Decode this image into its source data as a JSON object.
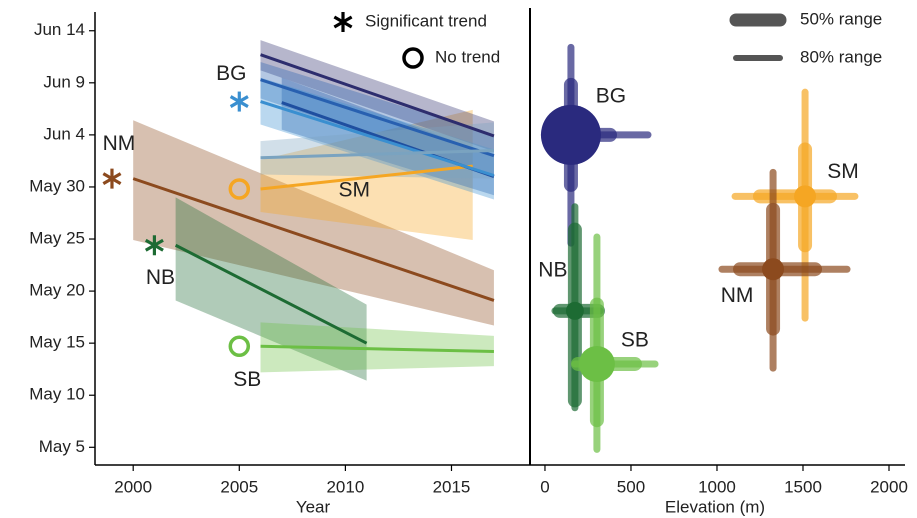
{
  "chart_data": [
    {
      "type": "line",
      "xlabel": "Year",
      "xlim": [
        1998.2,
        2018.7
      ],
      "xticks": [
        2000,
        2005,
        2010,
        2015
      ],
      "ylim": [
        123.3,
        166.8
      ],
      "yticks": [
        {
          "value": 125,
          "label": "May 5"
        },
        {
          "value": 130,
          "label": "May 10"
        },
        {
          "value": 135,
          "label": "May 15"
        },
        {
          "value": 140,
          "label": "May 20"
        },
        {
          "value": 145,
          "label": "May 25"
        },
        {
          "value": 150,
          "label": "May 30"
        },
        {
          "value": 155,
          "label": "Jun 4"
        },
        {
          "value": 160,
          "label": "Jun 9"
        },
        {
          "value": 165,
          "label": "Jun 14"
        }
      ],
      "legend": [
        "Significant trend",
        "No trend"
      ],
      "series": [
        {
          "name": "NM",
          "color": "#8c4a1e",
          "significant": true,
          "x": [
            2000,
            2017
          ],
          "values": [
            150.8,
            139.1
          ],
          "band_low": [
            144.9,
            136.7
          ],
          "band_high": [
            156.4,
            142.0
          ]
        },
        {
          "name": "NB",
          "color": "#1d6b33",
          "significant": true,
          "x": [
            2002,
            2011
          ],
          "values": [
            144.4,
            135.0
          ],
          "band_low": [
            139.1,
            131.4
          ],
          "band_high": [
            149.0,
            138.7
          ]
        },
        {
          "name": "SB",
          "color": "#6cbf45",
          "significant": false,
          "x": [
            2006,
            2017
          ],
          "values": [
            134.7,
            134.2
          ],
          "band_low": [
            132.2,
            132.8
          ],
          "band_high": [
            137.0,
            135.7
          ]
        },
        {
          "name": "SM",
          "color": "#f5a623",
          "significant": false,
          "x": [
            2006,
            2016
          ],
          "values": [
            149.8,
            152.0
          ],
          "band_low": [
            147.6,
            144.9
          ],
          "band_high": [
            152.6,
            157.4
          ]
        },
        {
          "color": "#2d2d6e",
          "x": [
            2006,
            2017
          ],
          "values": [
            162.7,
            154.9
          ],
          "band_low": [
            161.2,
            153.4
          ],
          "band_high": [
            164.1,
            156.3
          ]
        },
        {
          "color": "#2860b0",
          "x": [
            2006,
            2017
          ],
          "values": [
            160.3,
            153.0
          ],
          "band_low": [
            158.5,
            151.0
          ],
          "band_high": [
            162.0,
            155.0
          ]
        },
        {
          "color": "#1f4fa0",
          "x": [
            2007,
            2017
          ],
          "values": [
            158.1,
            151.0
          ],
          "band_low": [
            155.5,
            149.2
          ],
          "band_high": [
            160.5,
            153.0
          ]
        },
        {
          "name": "BG",
          "color": "#3a8fd0",
          "significant": true,
          "x": [
            2006,
            2017
          ],
          "values": [
            158.2,
            151.1
          ],
          "band_low": [
            156.0,
            148.8
          ],
          "band_high": [
            160.5,
            153.6
          ]
        },
        {
          "color": "#7aa3c0",
          "x": [
            2006,
            2017
          ],
          "values": [
            152.8,
            153.5
          ],
          "band_low": [
            151.2,
            150.8
          ],
          "band_high": [
            154.4,
            156.2
          ]
        }
      ]
    },
    {
      "type": "range",
      "xlabel": "Elevation (m)",
      "xlim": [
        -87,
        2093
      ],
      "xticks": [
        0,
        500,
        1000,
        1500,
        2000
      ],
      "ylim": [
        123.3,
        166.8
      ],
      "legend": [
        "50% range",
        "80% range"
      ],
      "series": [
        {
          "name": "BG",
          "color": "#2a2a7e",
          "elevation": 151,
          "date": 155.0,
          "elev_50": [
            17,
            378
          ],
          "elev_80": [
            0,
            599
          ],
          "date_50": [
            150.2,
            159.8
          ],
          "date_80": [
            144.6,
            163.4
          ]
        },
        {
          "name": "SM",
          "color": "#f5a623",
          "elevation": 1512,
          "date": 149.1,
          "elev_50": [
            1250,
            1657
          ],
          "elev_80": [
            1105,
            1802
          ],
          "date_50": [
            144.4,
            153.6
          ],
          "date_80": [
            137.4,
            159.1
          ]
        },
        {
          "name": "NM",
          "color": "#8c4a1e",
          "elevation": 1326,
          "date": 142.1,
          "elev_50": [
            1134,
            1570
          ],
          "elev_80": [
            1029,
            1756
          ],
          "date_50": [
            136.4,
            147.8
          ],
          "date_80": [
            132.6,
            151.4
          ]
        },
        {
          "name": "NB",
          "color": "#1d6b33",
          "elevation": 174,
          "date": 138.1,
          "elev_50": [
            87,
            308
          ],
          "elev_80": [
            58,
            320
          ],
          "date_50": [
            129.5,
            145.9
          ],
          "date_80": [
            128.8,
            148.1
          ]
        },
        {
          "name": "SB",
          "color": "#6cbf45",
          "elevation": 302,
          "date": 133.0,
          "elev_50": [
            192,
            523
          ],
          "elev_80": [
            174,
            640
          ],
          "date_50": [
            127.6,
            138.7
          ],
          "date_80": [
            124.8,
            145.2
          ]
        }
      ]
    }
  ]
}
